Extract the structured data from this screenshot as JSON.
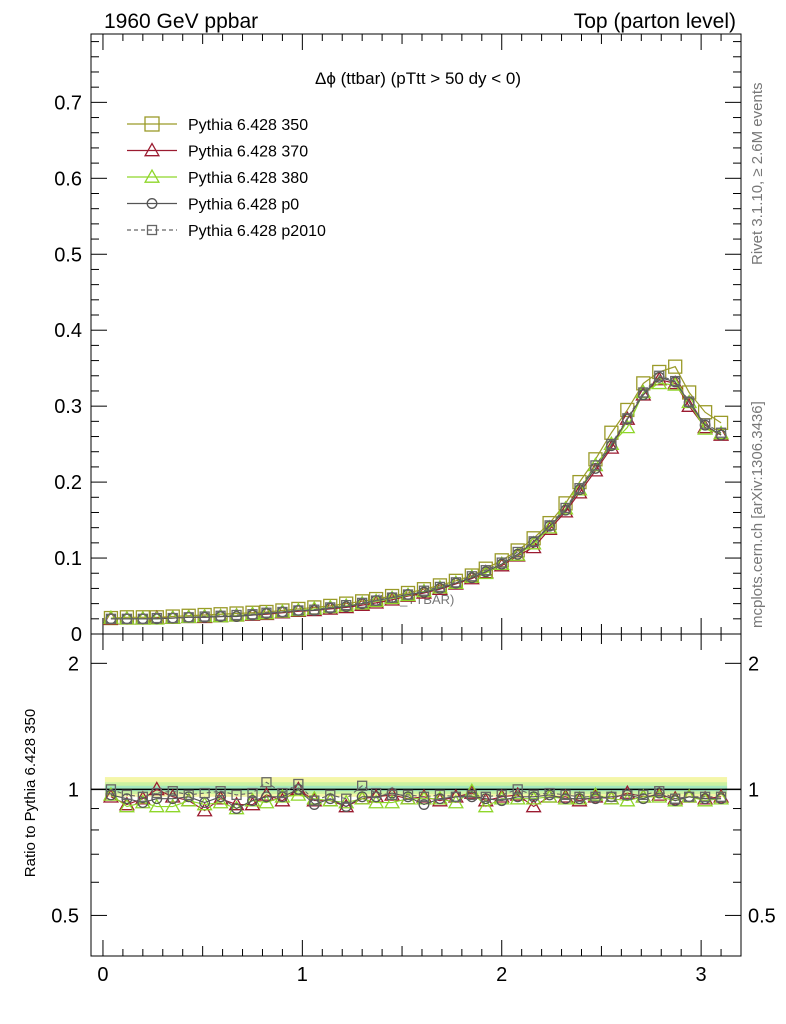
{
  "header": {
    "left": "1960 GeV ppbar",
    "right": "Top (parton level)"
  },
  "side_labels": {
    "rivet": "Rivet 3.1.10, ≥ 2.6M events",
    "mcplots": "mcplots.cern.ch [arXiv:1306.3436]"
  },
  "watermark": "(MC_TTBAR)",
  "chart_data": [
    {
      "type": "line",
      "panel": "main",
      "title": "Δϕ (ttbar) (pTtt > 50 dy < 0)",
      "xlabel": "",
      "ylabel": "",
      "xlim": [
        -0.06,
        3.2
      ],
      "ylim": [
        0,
        0.79
      ],
      "x_ticks": [
        0,
        1,
        2,
        3
      ],
      "y_ticks": [
        0,
        0.1,
        0.2,
        0.3,
        0.4,
        0.5,
        0.6,
        0.7
      ],
      "y_tick_labels": [
        "0",
        "0.1",
        "0.2",
        "0.3",
        "0.4",
        "0.5",
        "0.6",
        "0.7"
      ],
      "legend_position": "top-left",
      "x": [
        0.04,
        0.12,
        0.2,
        0.27,
        0.35,
        0.43,
        0.51,
        0.59,
        0.67,
        0.75,
        0.82,
        0.9,
        0.98,
        1.06,
        1.14,
        1.22,
        1.3,
        1.37,
        1.45,
        1.53,
        1.61,
        1.69,
        1.77,
        1.85,
        1.92,
        2.0,
        2.08,
        2.16,
        2.24,
        2.32,
        2.39,
        2.47,
        2.55,
        2.63,
        2.71,
        2.79,
        2.87,
        2.94,
        3.02,
        3.1
      ],
      "series": [
        {
          "name": "Pythia 6.428 350",
          "color": "#9a9a28",
          "marker": "square-open",
          "values": [
            0.021,
            0.022,
            0.022,
            0.022,
            0.023,
            0.024,
            0.025,
            0.026,
            0.027,
            0.028,
            0.029,
            0.031,
            0.033,
            0.035,
            0.037,
            0.04,
            0.043,
            0.046,
            0.05,
            0.054,
            0.059,
            0.064,
            0.07,
            0.077,
            0.086,
            0.097,
            0.11,
            0.126,
            0.146,
            0.172,
            0.2,
            0.23,
            0.265,
            0.295,
            0.33,
            0.345,
            0.352,
            0.318,
            0.292,
            0.278
          ]
        },
        {
          "name": "Pythia 6.428 370",
          "color": "#9b1b30",
          "marker": "triangle-open",
          "values": [
            0.02,
            0.02,
            0.02,
            0.021,
            0.021,
            0.022,
            0.022,
            0.023,
            0.024,
            0.025,
            0.026,
            0.028,
            0.03,
            0.031,
            0.033,
            0.035,
            0.038,
            0.041,
            0.045,
            0.05,
            0.054,
            0.059,
            0.066,
            0.073,
            0.081,
            0.09,
            0.103,
            0.114,
            0.138,
            0.161,
            0.186,
            0.215,
            0.245,
            0.283,
            0.315,
            0.335,
            0.33,
            0.3,
            0.272,
            0.262
          ]
        },
        {
          "name": "Pythia 6.428 380",
          "color": "#8fd62a",
          "marker": "triangle-open",
          "values": [
            0.021,
            0.02,
            0.02,
            0.02,
            0.021,
            0.022,
            0.023,
            0.023,
            0.024,
            0.026,
            0.027,
            0.029,
            0.031,
            0.033,
            0.035,
            0.037,
            0.04,
            0.043,
            0.047,
            0.051,
            0.056,
            0.061,
            0.067,
            0.075,
            0.08,
            0.092,
            0.104,
            0.119,
            0.14,
            0.165,
            0.19,
            0.222,
            0.25,
            0.272,
            0.318,
            0.33,
            0.328,
            0.305,
            0.27,
            0.264
          ]
        },
        {
          "name": "Pythia 6.428 p0",
          "color": "#555555",
          "marker": "circle-open",
          "values": [
            0.02,
            0.02,
            0.02,
            0.02,
            0.021,
            0.022,
            0.022,
            0.023,
            0.023,
            0.025,
            0.027,
            0.029,
            0.031,
            0.031,
            0.034,
            0.036,
            0.04,
            0.044,
            0.048,
            0.052,
            0.055,
            0.06,
            0.067,
            0.074,
            0.082,
            0.092,
            0.105,
            0.121,
            0.142,
            0.163,
            0.19,
            0.218,
            0.248,
            0.283,
            0.315,
            0.338,
            0.332,
            0.305,
            0.275,
            0.262
          ]
        },
        {
          "name": "Pythia 6.428 p2010",
          "color": "#666666",
          "marker": "square-open-dashed",
          "values": [
            0.02,
            0.02,
            0.02,
            0.021,
            0.021,
            0.022,
            0.023,
            0.024,
            0.025,
            0.026,
            0.028,
            0.029,
            0.031,
            0.032,
            0.035,
            0.038,
            0.041,
            0.044,
            0.048,
            0.052,
            0.057,
            0.062,
            0.068,
            0.076,
            0.084,
            0.094,
            0.108,
            0.122,
            0.143,
            0.166,
            0.192,
            0.222,
            0.25,
            0.284,
            0.318,
            0.34,
            0.333,
            0.306,
            0.277,
            0.265
          ]
        }
      ]
    },
    {
      "type": "line",
      "panel": "ratio",
      "title": "",
      "xlabel": "",
      "ylabel": "Ratio to Pythia 6.428 350",
      "xlim": [
        -0.06,
        3.2
      ],
      "ylim": [
        0.4,
        2.35
      ],
      "y_scale": "log",
      "x_ticks": [
        0,
        1,
        2,
        3
      ],
      "x_tick_labels": [
        "0",
        "1",
        "2",
        "3"
      ],
      "y_ticks": [
        0.5,
        1,
        2
      ],
      "y_tick_labels": [
        "0.5",
        "1",
        "2"
      ],
      "x": [
        0.04,
        0.12,
        0.2,
        0.27,
        0.35,
        0.43,
        0.51,
        0.59,
        0.67,
        0.75,
        0.82,
        0.9,
        0.98,
        1.06,
        1.14,
        1.22,
        1.3,
        1.37,
        1.45,
        1.53,
        1.61,
        1.69,
        1.77,
        1.85,
        1.92,
        2.0,
        2.08,
        2.16,
        2.24,
        2.32,
        2.39,
        2.47,
        2.55,
        2.63,
        2.71,
        2.79,
        2.87,
        2.94,
        3.02,
        3.1
      ],
      "series": [
        {
          "name": "Pythia 6.428 370",
          "color": "#9b1b30",
          "marker": "triangle-open",
          "values": [
            0.96,
            0.92,
            0.95,
            1.0,
            0.96,
            0.94,
            0.89,
            0.95,
            0.92,
            0.92,
            0.97,
            0.94,
            1.0,
            0.94,
            0.94,
            0.91,
            0.95,
            0.96,
            0.97,
            0.95,
            0.96,
            0.94,
            0.96,
            0.98,
            0.94,
            0.96,
            0.97,
            0.91,
            0.96,
            0.96,
            0.94,
            0.96,
            0.95,
            0.98,
            0.96,
            0.97,
            0.95,
            0.96,
            0.95,
            0.96
          ]
        },
        {
          "name": "Pythia 6.428 380",
          "color": "#8fd62a",
          "marker": "triangle-open",
          "values": [
            0.97,
            0.91,
            0.93,
            0.91,
            0.91,
            0.94,
            0.92,
            0.93,
            0.9,
            0.94,
            0.93,
            0.96,
            0.97,
            0.95,
            0.94,
            0.93,
            0.95,
            0.93,
            0.93,
            0.95,
            0.95,
            0.95,
            0.93,
            0.99,
            0.91,
            0.95,
            0.95,
            0.95,
            0.96,
            0.95,
            0.95,
            0.97,
            0.95,
            0.94,
            0.96,
            0.96,
            0.94,
            0.96,
            0.94,
            0.95
          ]
        },
        {
          "name": "Pythia 6.428 p0",
          "color": "#555555",
          "marker": "circle-open",
          "values": [
            0.97,
            0.95,
            0.93,
            0.95,
            0.95,
            0.96,
            0.93,
            0.96,
            0.9,
            0.94,
            0.96,
            0.96,
            1.0,
            0.92,
            0.95,
            0.91,
            0.96,
            0.96,
            0.98,
            0.96,
            0.92,
            0.95,
            0.96,
            0.96,
            0.95,
            0.94,
            0.96,
            0.96,
            0.97,
            0.95,
            0.95,
            0.95,
            0.96,
            0.97,
            0.95,
            0.98,
            0.94,
            0.96,
            0.95,
            0.95
          ]
        },
        {
          "name": "Pythia 6.428 p2010",
          "color": "#666666",
          "marker": "square-open-dashed",
          "values": [
            1.0,
            0.97,
            0.96,
            0.98,
            0.99,
            0.97,
            0.98,
            0.99,
            0.97,
            0.98,
            1.04,
            0.98,
            1.03,
            0.94,
            0.97,
            0.95,
            1.02,
            0.98,
            0.97,
            0.97,
            0.96,
            0.97,
            0.96,
            0.97,
            0.96,
            0.97,
            1.0,
            0.97,
            0.98,
            0.97,
            0.96,
            0.96,
            0.96,
            0.97,
            0.97,
            0.99,
            0.95,
            0.96,
            0.96,
            0.96
          ]
        }
      ]
    }
  ]
}
